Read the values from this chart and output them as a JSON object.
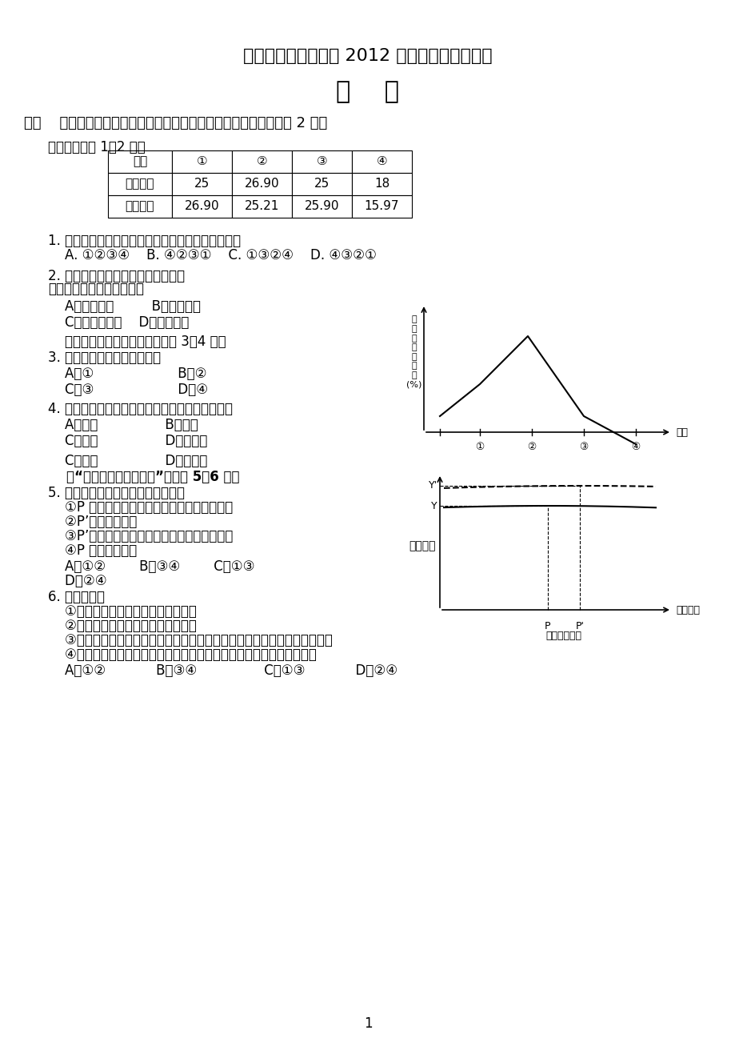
{
  "bg_color": "#ffffff",
  "title1": "成都市六校协作体高 2012 级第二学期期中考试",
  "title2": "地    理",
  "section1": "一．    选择题（请选择最符合题意的选项，每题仅有一个选项，每题 2 分）",
  "table_intro": "读下表，完成 1～2 题。",
  "table_headers": [
    "城市",
    "①",
    "②",
    "③",
    "④"
  ],
  "table_row1": [
    "年初人口",
    "25",
    "26.90",
    "25",
    "18"
  ],
  "table_row2": [
    "年末人口",
    "26.90",
    "25.21",
    "25.90",
    "15.97"
  ],
  "q1": "1. 该年四城市的人口自然增长率，由低到高排列的是",
  "q1_opts": "    A. ①②③④    B. ④②③①    C. ①③②④    D. ④③②①",
  "q2": "2. 表中某城市人口自然增长率最低，",
  "q2_intro": "下列原因分析最不可能的是",
  "q2_opts_a": "    A．地区政策         B．晚婚习俗",
  "q2_opts_c": "    C．优美的环境    D．文化观念",
  "chart1_intro": "    读某国人口自然增长率图，完成 3～4 题。",
  "q3": "3. 该国人口达到顶峰的时期为",
  "q3_opts_ab": "    A．①                    B．②",
  "q3_opts_cd": "    C．③                    D．④",
  "q4": "4. 下列各国中，人口发展情况与图示类型一致的是",
  "q4_opts_ab": "    A．埃及                B．中国",
  "q4_opts_cd": "    C．德国                D．新加坡",
  "q4_opts_cd2": "    C．德国                D．新加坡",
  "chart2_intro": "    读“最佳人口规模示意图”，回答 5～6 题。",
  "q5": "5. 关于图中人口规模的叙述正确的是",
  "q5_1": "    ①P 为较低生产力水平条件下的合理人口容量",
  "q5_2": "    ②P’为环境承载力",
  "q5_3": "    ③P’为较高生产力水平条件下的合理人口容量",
  "q5_4": "    ④P 为环境承载力",
  "q5_opts": "    A．①②        B．③④        C．①③",
  "q5_d": "    D．②④",
  "q6": "6. 图中反映了",
  "q6_1": "    ①人口规模与生活质量呈正相关关系",
  "q6_2": "    ②人口规模与生活质量呈负相关关系",
  "q6_3": "    ③当人口水平低于最佳人口规模时，人口的增长和生活质量的提高呈正相关",
  "q6_4": "    ④当人口水平高于最佳人口规模时，人口的增长将导致生活质量的下降",
  "q6_opts": "    A．①②            B．③④                C．①③            D．②④",
  "page_num": "1"
}
